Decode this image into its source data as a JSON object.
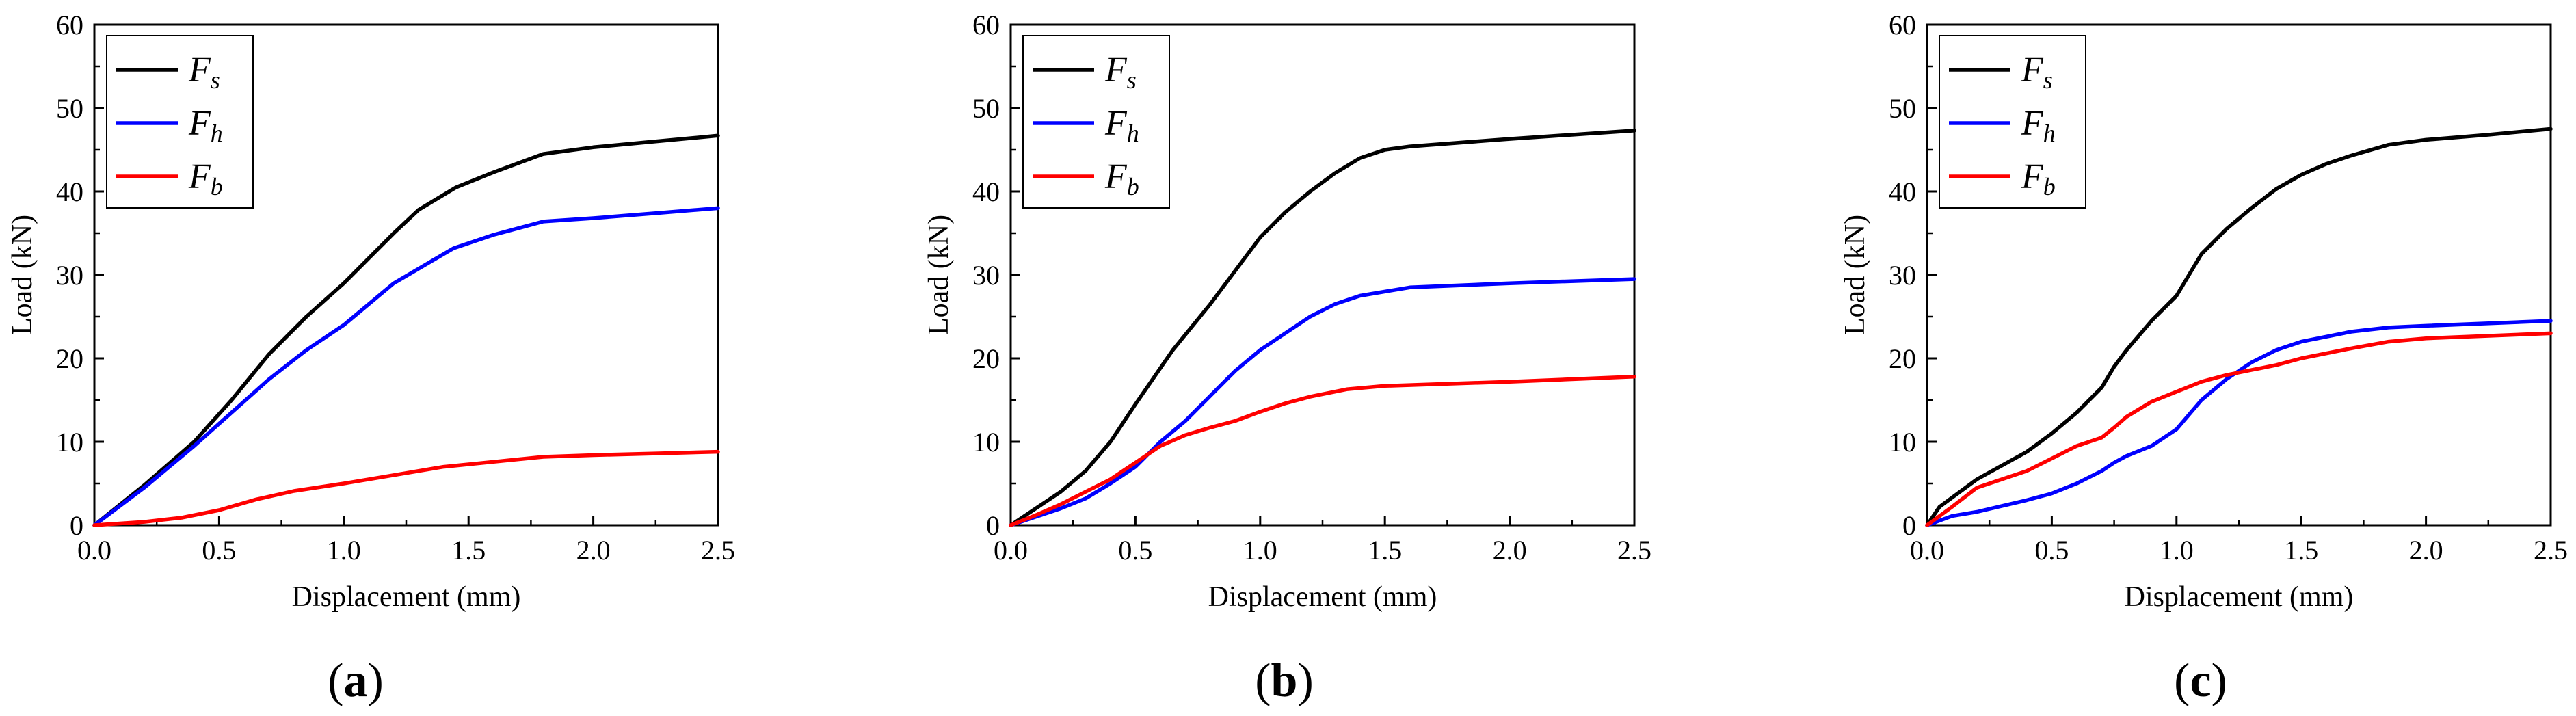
{
  "chart_data": [
    {
      "type": "line",
      "panel_label": "a",
      "xlabel": "Displacement (mm)",
      "ylabel": "Load (kN)",
      "xlim": [
        0,
        2.5
      ],
      "ylim": [
        0,
        60
      ],
      "xticks": [
        "0.0",
        "0.5",
        "1.0",
        "1.5",
        "2.0",
        "2.5"
      ],
      "yticks": [
        "0",
        "10",
        "20",
        "30",
        "40",
        "50",
        "60"
      ],
      "legend_position": "top-left",
      "series": [
        {
          "name": "F",
          "sub": "s",
          "color": "#000000",
          "points": [
            [
              0,
              0
            ],
            [
              0.2,
              4.8
            ],
            [
              0.4,
              10
            ],
            [
              0.55,
              15
            ],
            [
              0.7,
              20.5
            ],
            [
              0.85,
              25
            ],
            [
              1.0,
              29
            ],
            [
              1.1,
              32
            ],
            [
              1.2,
              35
            ],
            [
              1.3,
              37.8
            ],
            [
              1.45,
              40.5
            ],
            [
              1.6,
              42.3
            ],
            [
              1.8,
              44.5
            ],
            [
              2.0,
              45.3
            ],
            [
              2.25,
              46
            ],
            [
              2.5,
              46.7
            ]
          ]
        },
        {
          "name": "F",
          "sub": "h",
          "color": "#0000ff",
          "points": [
            [
              0,
              0
            ],
            [
              0.2,
              4.5
            ],
            [
              0.4,
              9.5
            ],
            [
              0.55,
              13.5
            ],
            [
              0.7,
              17.5
            ],
            [
              0.85,
              21
            ],
            [
              1.0,
              24
            ],
            [
              1.2,
              29
            ],
            [
              1.44,
              33.2
            ],
            [
              1.6,
              34.8
            ],
            [
              1.8,
              36.4
            ],
            [
              2.0,
              36.8
            ],
            [
              2.25,
              37.4
            ],
            [
              2.5,
              38
            ]
          ]
        },
        {
          "name": "F",
          "sub": "b",
          "color": "#ff0000",
          "points": [
            [
              0,
              0
            ],
            [
              0.2,
              0.4
            ],
            [
              0.35,
              0.9
            ],
            [
              0.5,
              1.8
            ],
            [
              0.65,
              3.1
            ],
            [
              0.8,
              4.1
            ],
            [
              1.0,
              5
            ],
            [
              1.2,
              6
            ],
            [
              1.4,
              7
            ],
            [
              1.6,
              7.6
            ],
            [
              1.8,
              8.2
            ],
            [
              2.0,
              8.4
            ],
            [
              2.25,
              8.6
            ],
            [
              2.5,
              8.8
            ]
          ]
        }
      ]
    },
    {
      "type": "line",
      "panel_label": "b",
      "xlabel": "Displacement (mm)",
      "ylabel": "Load (kN)",
      "xlim": [
        0,
        2.5
      ],
      "ylim": [
        0,
        60
      ],
      "xticks": [
        "0.0",
        "0.5",
        "1.0",
        "1.5",
        "2.0",
        "2.5"
      ],
      "yticks": [
        "0",
        "10",
        "20",
        "30",
        "40",
        "50",
        "60"
      ],
      "legend_position": "top-left",
      "series": [
        {
          "name": "F",
          "sub": "s",
          "color": "#000000",
          "points": [
            [
              0,
              0
            ],
            [
              0.2,
              4
            ],
            [
              0.3,
              6.5
            ],
            [
              0.4,
              10
            ],
            [
              0.5,
              14.5
            ],
            [
              0.65,
              21
            ],
            [
              0.8,
              26.5
            ],
            [
              0.9,
              30.5
            ],
            [
              1.0,
              34.5
            ],
            [
              1.1,
              37.5
            ],
            [
              1.2,
              40
            ],
            [
              1.3,
              42.2
            ],
            [
              1.4,
              44
            ],
            [
              1.5,
              45
            ],
            [
              1.6,
              45.4
            ],
            [
              2.0,
              46.3
            ],
            [
              2.5,
              47.3
            ]
          ]
        },
        {
          "name": "F",
          "sub": "h",
          "color": "#0000ff",
          "points": [
            [
              0,
              0
            ],
            [
              0.1,
              1
            ],
            [
              0.2,
              2
            ],
            [
              0.3,
              3.2
            ],
            [
              0.4,
              5
            ],
            [
              0.5,
              7
            ],
            [
              0.6,
              10
            ],
            [
              0.7,
              12.5
            ],
            [
              0.8,
              15.5
            ],
            [
              0.9,
              18.5
            ],
            [
              1.0,
              21
            ],
            [
              1.1,
              23
            ],
            [
              1.2,
              25
            ],
            [
              1.3,
              26.5
            ],
            [
              1.4,
              27.5
            ],
            [
              1.6,
              28.5
            ],
            [
              2.0,
              29
            ],
            [
              2.5,
              29.5
            ]
          ]
        },
        {
          "name": "F",
          "sub": "b",
          "color": "#ff0000",
          "points": [
            [
              0,
              0
            ],
            [
              0.1,
              1.2
            ],
            [
              0.2,
              2.5
            ],
            [
              0.3,
              4
            ],
            [
              0.4,
              5.5
            ],
            [
              0.5,
              7.5
            ],
            [
              0.6,
              9.5
            ],
            [
              0.7,
              10.8
            ],
            [
              0.8,
              11.7
            ],
            [
              0.9,
              12.5
            ],
            [
              1.0,
              13.6
            ],
            [
              1.1,
              14.6
            ],
            [
              1.2,
              15.4
            ],
            [
              1.35,
              16.3
            ],
            [
              1.5,
              16.7
            ],
            [
              2.0,
              17.2
            ],
            [
              2.5,
              17.8
            ]
          ]
        }
      ]
    },
    {
      "type": "line",
      "panel_label": "c",
      "xlabel": "Displacement (mm)",
      "ylabel": "Load (kN)",
      "xlim": [
        0,
        2.5
      ],
      "ylim": [
        0,
        60
      ],
      "xticks": [
        "0.0",
        "0.5",
        "1.0",
        "1.5",
        "2.0",
        "2.5"
      ],
      "yticks": [
        "0",
        "10",
        "20",
        "30",
        "40",
        "50",
        "60"
      ],
      "legend_position": "top-left",
      "series": [
        {
          "name": "F",
          "sub": "s",
          "color": "#000000",
          "points": [
            [
              0,
              0
            ],
            [
              0.05,
              2.2
            ],
            [
              0.2,
              5.5
            ],
            [
              0.4,
              8.8
            ],
            [
              0.5,
              11
            ],
            [
              0.6,
              13.5
            ],
            [
              0.7,
              16.5
            ],
            [
              0.75,
              19
            ],
            [
              0.8,
              21
            ],
            [
              0.9,
              24.5
            ],
            [
              1.0,
              27.5
            ],
            [
              1.1,
              32.5
            ],
            [
              1.2,
              35.5
            ],
            [
              1.3,
              38
            ],
            [
              1.4,
              40.3
            ],
            [
              1.5,
              42
            ],
            [
              1.6,
              43.3
            ],
            [
              1.7,
              44.3
            ],
            [
              1.85,
              45.6
            ],
            [
              2.0,
              46.2
            ],
            [
              2.25,
              46.8
            ],
            [
              2.5,
              47.5
            ]
          ]
        },
        {
          "name": "F",
          "sub": "h",
          "color": "#0000ff",
          "points": [
            [
              0,
              0
            ],
            [
              0.1,
              1.1
            ],
            [
              0.2,
              1.6
            ],
            [
              0.3,
              2.3
            ],
            [
              0.4,
              3
            ],
            [
              0.5,
              3.8
            ],
            [
              0.6,
              5
            ],
            [
              0.7,
              6.5
            ],
            [
              0.75,
              7.5
            ],
            [
              0.8,
              8.3
            ],
            [
              0.9,
              9.5
            ],
            [
              1.0,
              11.5
            ],
            [
              1.1,
              15
            ],
            [
              1.2,
              17.5
            ],
            [
              1.3,
              19.5
            ],
            [
              1.4,
              21
            ],
            [
              1.5,
              22
            ],
            [
              1.7,
              23.2
            ],
            [
              1.85,
              23.7
            ],
            [
              2.0,
              23.9
            ],
            [
              2.5,
              24.5
            ]
          ]
        },
        {
          "name": "F",
          "sub": "b",
          "color": "#ff0000",
          "points": [
            [
              0,
              0
            ],
            [
              0.1,
              2.2
            ],
            [
              0.2,
              4.5
            ],
            [
              0.3,
              5.5
            ],
            [
              0.4,
              6.5
            ],
            [
              0.5,
              8
            ],
            [
              0.6,
              9.5
            ],
            [
              0.7,
              10.5
            ],
            [
              0.75,
              11.7
            ],
            [
              0.8,
              13
            ],
            [
              0.9,
              14.8
            ],
            [
              1.0,
              16
            ],
            [
              1.1,
              17.2
            ],
            [
              1.2,
              18
            ],
            [
              1.3,
              18.6
            ],
            [
              1.4,
              19.2
            ],
            [
              1.5,
              20
            ],
            [
              1.7,
              21.2
            ],
            [
              1.85,
              22
            ],
            [
              2.0,
              22.4
            ],
            [
              2.5,
              23
            ]
          ]
        }
      ]
    }
  ]
}
